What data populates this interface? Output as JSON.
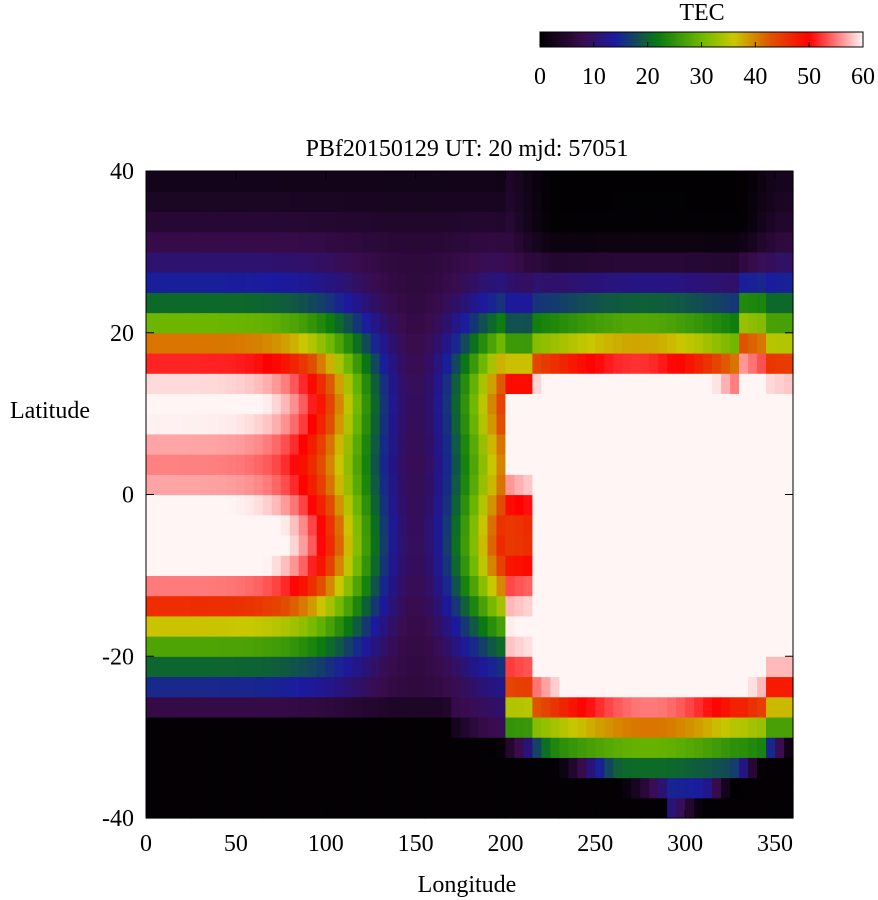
{
  "chart_data": {
    "type": "heatmap",
    "title": "PBf20150129  UT: 20  mjd: 57051",
    "xlabel": "Longitude",
    "ylabel": "Latitude",
    "xlim": [
      0,
      360
    ],
    "ylim": [
      -40,
      40
    ],
    "x_ticks": [
      0,
      50,
      100,
      150,
      200,
      250,
      300,
      350
    ],
    "y_ticks": [
      -40,
      -20,
      0,
      20,
      40
    ],
    "colorbar": {
      "label": "TEC",
      "range": [
        0,
        60
      ],
      "ticks": [
        0,
        10,
        20,
        30,
        40,
        50,
        60
      ],
      "palette": [
        {
          "v": 0,
          "color": "#000000"
        },
        {
          "v": 8,
          "color": "#3a0c4e"
        },
        {
          "v": 14,
          "color": "#1a1aa0"
        },
        {
          "v": 22,
          "color": "#0a7a10"
        },
        {
          "v": 30,
          "color": "#6fb800"
        },
        {
          "v": 36,
          "color": "#c8c800"
        },
        {
          "v": 43,
          "color": "#e05000"
        },
        {
          "v": 50,
          "color": "#ff0000"
        },
        {
          "v": 56,
          "color": "#ff9090"
        },
        {
          "v": 60,
          "color": "#fff5f5"
        }
      ]
    },
    "grid": false,
    "grid_step": {
      "lon": 5,
      "lat": 2.5
    },
    "field_model": {
      "bands": [
        {
          "lat": 13,
          "width": 8,
          "amp": 44
        },
        {
          "lat": -7,
          "width": 8,
          "amp": 44
        }
      ],
      "dusk_trough_lon": 150,
      "night_lon": 150,
      "north_low_region": "lon 200-360, lat > 28",
      "south_low_region": "lat < -25"
    }
  }
}
